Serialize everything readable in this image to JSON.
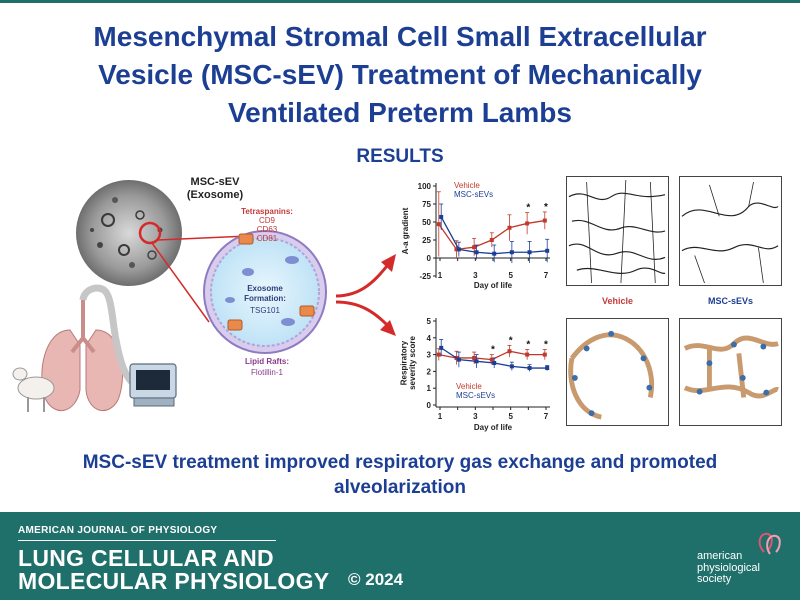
{
  "title": {
    "line1": "Mesenchymal Stromal Cell Small Extracellular",
    "line2": "Vesicle (MSC-sEV) Treatment of Mechanically",
    "line3": "Ventilated Preterm Lambs"
  },
  "section_heading": "RESULTS",
  "diagram": {
    "exosome_label_1": "MSC-sEV",
    "exosome_label_2": "(Exosome)",
    "tetraspanins_title": "Tetraspanins:",
    "tetraspanins": [
      "CD9",
      "CD63",
      "CD81"
    ],
    "formation_title_1": "Exosome",
    "formation_title_2": "Formation:",
    "formation_marker": "TSG101",
    "lipid_rafts_title": "Lipid Rafts:",
    "lipid_rafts_marker": "Flotillin-1"
  },
  "chart_data": [
    {
      "type": "line",
      "ylabel": "A-a gradient",
      "xlabel": "Day of life",
      "x": [
        1,
        2,
        3,
        4,
        5,
        6,
        7
      ],
      "xticks": [
        1,
        3,
        5,
        7
      ],
      "yticks": [
        -25,
        0,
        25,
        50,
        75,
        100
      ],
      "ylim": [
        -25,
        100
      ],
      "legend_position": "top-left",
      "series": [
        {
          "name": "Vehicle",
          "color": "#c0392b",
          "values": [
            47,
            12,
            15,
            25,
            42,
            48,
            52
          ],
          "errors": [
            45,
            12,
            12,
            10,
            18,
            15,
            12
          ]
        },
        {
          "name": "MSC-sEVs",
          "color": "#1c3f94",
          "values": [
            57,
            12,
            8,
            6,
            8,
            8,
            10
          ],
          "errors": [
            18,
            10,
            10,
            12,
            15,
            15,
            16
          ]
        }
      ],
      "significance": {
        "x": [
          6,
          7
        ],
        "label": "*"
      }
    },
    {
      "type": "line",
      "ylabel": "Respiratory severity score",
      "xlabel": "Day of life",
      "x": [
        1,
        2,
        3,
        4,
        5,
        6,
        7
      ],
      "xticks": [
        1,
        3,
        5,
        7
      ],
      "yticks": [
        0,
        1,
        2,
        3,
        4,
        5
      ],
      "ylim": [
        0,
        5
      ],
      "legend_position": "bottom-left",
      "series": [
        {
          "name": "Vehicle",
          "color": "#c0392b",
          "values": [
            3.0,
            2.8,
            2.8,
            2.7,
            3.2,
            3.0,
            3.0
          ],
          "errors": [
            0.35,
            0.4,
            0.35,
            0.3,
            0.35,
            0.3,
            0.3
          ]
        },
        {
          "name": "MSC-sEVs",
          "color": "#1c3f94",
          "values": [
            3.4,
            2.7,
            2.6,
            2.5,
            2.3,
            2.2,
            2.2
          ],
          "errors": [
            0.5,
            0.45,
            0.4,
            0.3,
            0.25,
            0.2,
            0.15
          ]
        }
      ],
      "significance": {
        "x": [
          4,
          5,
          6,
          7
        ],
        "label": "*"
      }
    }
  ],
  "histology": {
    "vehicle_label": "Vehicle",
    "msc_label": "MSC-sEVs"
  },
  "conclusion": {
    "line1": "MSC-sEV treatment improved respiratory gas exchange and promoted",
    "line2": "alveolarization"
  },
  "footer": {
    "journal_top": "AMERICAN JOURNAL OF PHYSIOLOGY",
    "journal_line1": "LUNG CELLULAR AND",
    "journal_line2": "MOLECULAR PHYSIOLOGY",
    "copyright": "© 2024",
    "society_line1": "american",
    "society_line2": "physiological",
    "society_line3": "society",
    "background_color": "#1f6f6b"
  }
}
